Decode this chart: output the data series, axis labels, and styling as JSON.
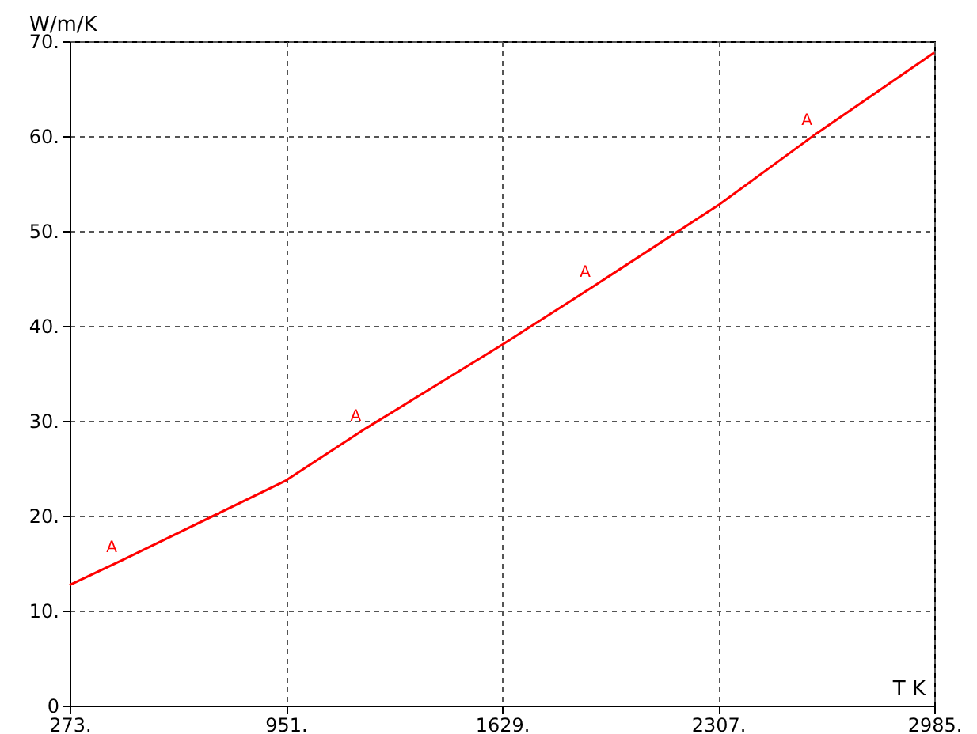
{
  "chart_data": {
    "type": "line",
    "xlabel": "T K",
    "ylabel": "W/m/K",
    "x": [
      273,
      437,
      951,
      1202,
      1629,
      1922,
      2307,
      2617,
      2985
    ],
    "series": [
      {
        "color": "#ff0000",
        "values": [
          12.7,
          15.3,
          23.7,
          29.2,
          38,
          44.3,
          52.7,
          60.3,
          68.8
        ]
      }
    ],
    "xlim": [
      273,
      2985
    ],
    "xticks": [
      {
        "value": 273,
        "label": "273."
      },
      {
        "value": 951,
        "label": "951."
      },
      {
        "value": 1629,
        "label": "1629."
      },
      {
        "value": 2307,
        "label": "2307."
      },
      {
        "value": 2985,
        "label": "2985."
      }
    ],
    "ylim": [
      0,
      70
    ],
    "yticks": [
      0,
      {
        "value": 10,
        "label": "10."
      },
      {
        "value": 20,
        "label": "20."
      },
      {
        "value": 30,
        "label": "30."
      },
      {
        "value": 40,
        "label": "40."
      },
      {
        "value": 50,
        "label": "50."
      },
      {
        "value": 60,
        "label": "60."
      },
      {
        "value": 70,
        "label": "70."
      }
    ],
    "annotations": [
      {
        "text": "A",
        "x": 437,
        "y": 15.3
      },
      {
        "text": "A",
        "x": 1202,
        "y": 29.2
      },
      {
        "text": "A",
        "x": 1922,
        "y": 44.3
      },
      {
        "text": "A",
        "x": 2617,
        "y": 60.3
      }
    ],
    "grid": true,
    "marker": "none",
    "line_style": "solid"
  }
}
